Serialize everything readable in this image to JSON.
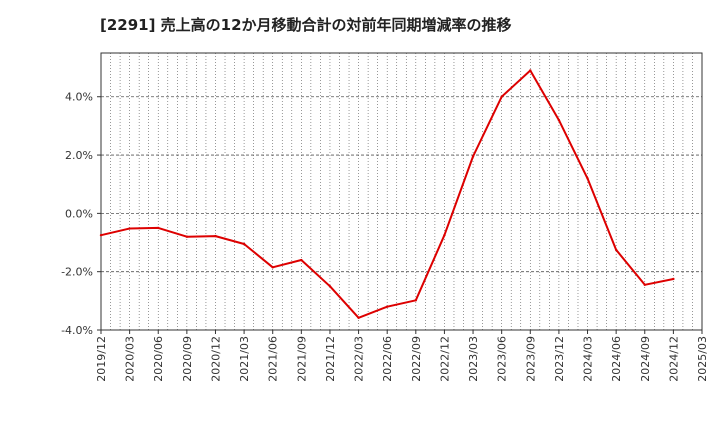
{
  "chart_data": {
    "type": "line",
    "title": "[2291]  売上高の12か月移動合計の対前年同期増減率の推移",
    "xlabel": "",
    "ylabel": "",
    "ylim": [
      -4.0,
      5.5
    ],
    "grid": true,
    "y_ticks": [
      -4.0,
      -2.0,
      0.0,
      2.0,
      4.0
    ],
    "y_tick_labels": [
      "-4.0%",
      "-2.0%",
      "0.0%",
      "2.0%",
      "4.0%"
    ],
    "x_tick_labels": [
      "2019/12",
      "2020/03",
      "2020/06",
      "2020/09",
      "2020/12",
      "2021/03",
      "2021/06",
      "2021/09",
      "2021/12",
      "2022/03",
      "2022/06",
      "2022/09",
      "2022/12",
      "2023/03",
      "2023/06",
      "2023/09",
      "2023/12",
      "2024/03",
      "2024/06",
      "2024/09",
      "2024/12",
      "2025/03"
    ],
    "series": [
      {
        "name": "対前年同期増減率",
        "color": "#dd0000",
        "x": [
          "2019/12",
          "2020/03",
          "2020/06",
          "2020/09",
          "2020/12",
          "2021/03",
          "2021/06",
          "2021/09",
          "2021/12",
          "2022/03",
          "2022/06",
          "2022/09",
          "2022/12",
          "2023/03",
          "2023/06",
          "2023/09",
          "2023/12",
          "2024/03",
          "2024/06",
          "2024/09",
          "2024/12"
        ],
        "values": [
          -0.75,
          -0.52,
          -0.5,
          -0.8,
          -0.78,
          -1.05,
          -1.85,
          -1.6,
          -2.5,
          -3.58,
          -3.2,
          -2.98,
          -0.75,
          1.95,
          4.0,
          4.9,
          3.2,
          1.2,
          -1.25,
          -2.45,
          -2.25
        ]
      }
    ]
  }
}
